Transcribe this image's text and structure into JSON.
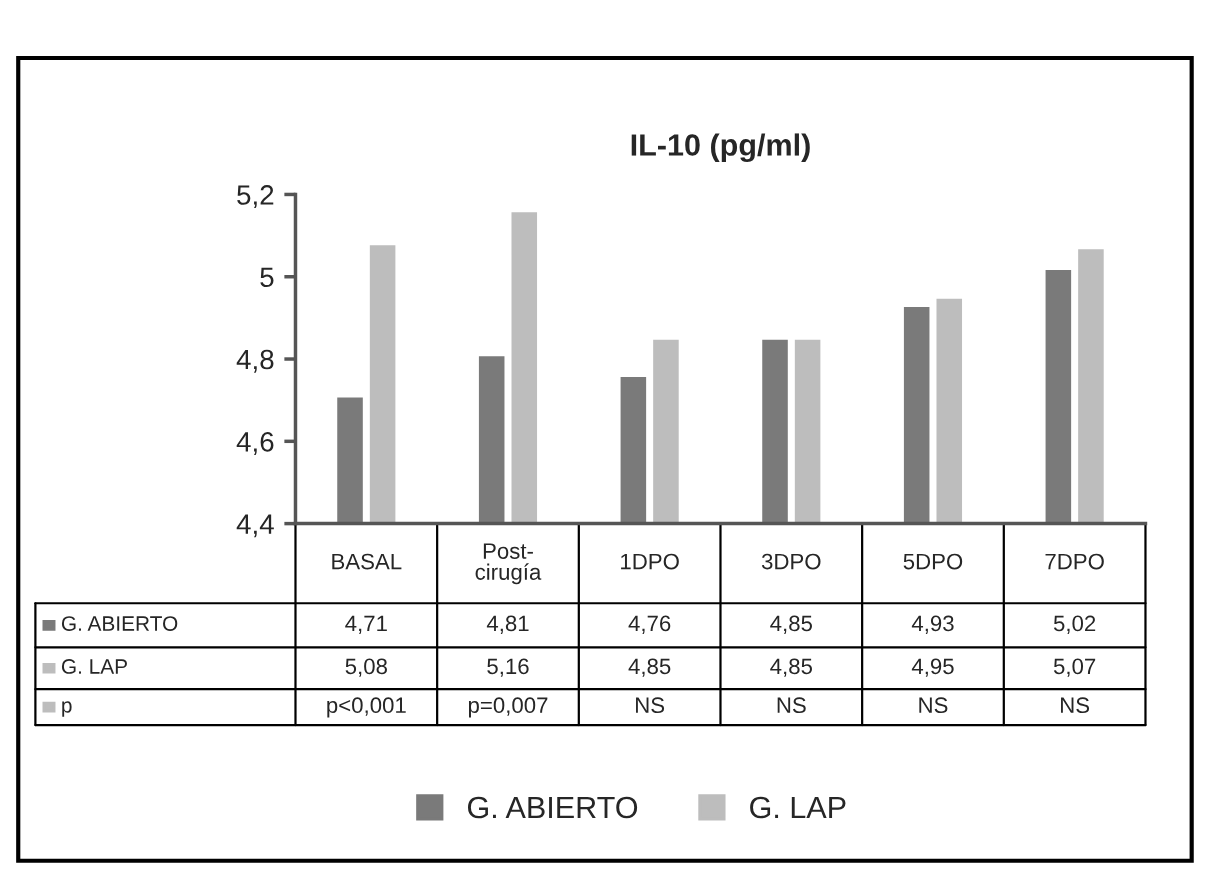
{
  "chart_data": {
    "type": "bar",
    "title": "IL-10 (pg/ml)",
    "categories": [
      "BASAL",
      "Post-\ncirugía",
      "1DPO",
      "3DPO",
      "5DPO",
      "7DPO"
    ],
    "series": [
      {
        "name": "G. ABIERTO",
        "color": "#7a7a7a",
        "values": [
          4.71,
          4.81,
          4.76,
          4.85,
          4.93,
          5.02
        ],
        "value_labels": [
          "4,71",
          "4,81",
          "4,76",
          "4,85",
          "4,93",
          "5,02"
        ]
      },
      {
        "name": "G. LAP",
        "color": "#bdbdbd",
        "values": [
          5.08,
          5.16,
          4.85,
          4.85,
          4.95,
          5.07
        ],
        "value_labels": [
          "5,08",
          "5,16",
          "4,85",
          "4,85",
          "4,95",
          "5,07"
        ]
      }
    ],
    "annotations": [
      "p",
      "p<0,001",
      "p=0,007",
      "NS",
      "NS",
      "NS",
      "NS"
    ],
    "ylim": [
      4.4,
      5.2
    ],
    "yticks": [
      {
        "value": 4.4,
        "label": "4,4"
      },
      {
        "value": 4.6,
        "label": "4,6"
      },
      {
        "value": 4.8,
        "label": "4,8"
      },
      {
        "value": 5.0,
        "label": "5"
      },
      {
        "value": 5.2,
        "label": "5,2"
      }
    ],
    "grid": false,
    "legend": "bottom"
  }
}
